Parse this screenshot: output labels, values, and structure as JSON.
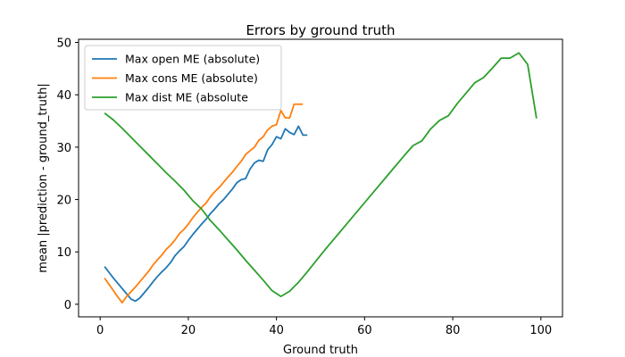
{
  "chart_data": {
    "type": "line",
    "title": "Errors by ground truth",
    "xlabel": "Ground truth",
    "ylabel": "mean |prediction - ground_truth|",
    "xlim": [
      -4.9,
      104.9
    ],
    "ylim": [
      -2.4,
      50.6
    ],
    "xticks": [
      0,
      20,
      40,
      60,
      80,
      100
    ],
    "yticks": [
      0,
      10,
      20,
      30,
      40,
      50
    ],
    "grid": false,
    "legend": "upper left",
    "series": [
      {
        "name": "Max open ME (absolute)",
        "color": "#1f77b4",
        "x": [
          1,
          2,
          3,
          4,
          5,
          6,
          7,
          8,
          9,
          10,
          11,
          12,
          13,
          14,
          15,
          16,
          17,
          18,
          19,
          20,
          21,
          22,
          23,
          24,
          25,
          26,
          27,
          28,
          29,
          30,
          31,
          32,
          33,
          34,
          35,
          36,
          37,
          38,
          39,
          40,
          41,
          42,
          43,
          44,
          45,
          46,
          47
        ],
        "y": [
          7.2,
          6.1,
          5.0,
          4.0,
          3.0,
          2.0,
          1.0,
          0.6,
          1.2,
          2.2,
          3.2,
          4.3,
          5.3,
          6.2,
          7.0,
          8.0,
          9.3,
          10.2,
          11.0,
          12.2,
          13.3,
          14.3,
          15.3,
          16.2,
          17.3,
          18.2,
          19.2,
          20.0,
          21.0,
          22.0,
          23.2,
          23.8,
          24.0,
          25.8,
          27.0,
          27.5,
          27.3,
          29.5,
          30.5,
          32.0,
          31.6,
          33.5,
          32.8,
          32.4,
          34.0,
          32.3,
          32.3
        ]
      },
      {
        "name": "Max cons ME (absolute)",
        "color": "#ff7f0e",
        "x": [
          1,
          2,
          3,
          4,
          5,
          6,
          7,
          8,
          9,
          10,
          11,
          12,
          13,
          14,
          15,
          16,
          17,
          18,
          19,
          20,
          21,
          22,
          23,
          24,
          25,
          26,
          27,
          28,
          29,
          30,
          31,
          32,
          33,
          34,
          35,
          36,
          37,
          38,
          39,
          40,
          41,
          42,
          43,
          44,
          45,
          46
        ],
        "y": [
          5.0,
          3.8,
          2.6,
          1.4,
          0.3,
          1.5,
          2.4,
          3.3,
          4.3,
          5.3,
          6.3,
          7.5,
          8.5,
          9.4,
          10.5,
          11.3,
          12.3,
          13.5,
          14.3,
          15.3,
          16.5,
          17.5,
          18.5,
          19.3,
          20.5,
          21.5,
          22.3,
          23.3,
          24.3,
          25.2,
          26.3,
          27.3,
          28.6,
          29.3,
          30.0,
          31.3,
          32.0,
          33.3,
          34.0,
          34.3,
          37.0,
          35.6,
          35.6,
          38.2,
          38.2,
          38.2
        ]
      },
      {
        "name": "Max dist ME (absolute",
        "color": "#2ca02c",
        "x": [
          1,
          3,
          5,
          7,
          9,
          11,
          13,
          15,
          17,
          19,
          21,
          23,
          25,
          27,
          29,
          31,
          33,
          35,
          37,
          39,
          41,
          43,
          45,
          47,
          49,
          51,
          53,
          55,
          57,
          59,
          61,
          63,
          65,
          67,
          69,
          71,
          73,
          75,
          77,
          79,
          81,
          83,
          85,
          87,
          89,
          91,
          93,
          95,
          97,
          99
        ],
        "y": [
          36.5,
          35.2,
          33.6,
          31.9,
          30.2,
          28.5,
          26.8,
          25.1,
          23.5,
          21.8,
          19.8,
          18.2,
          16.0,
          14.2,
          12.3,
          10.4,
          8.4,
          6.5,
          4.6,
          2.6,
          1.5,
          2.5,
          4.2,
          6.2,
          8.3,
          10.4,
          12.4,
          14.4,
          16.4,
          18.4,
          20.4,
          22.4,
          24.4,
          26.4,
          28.4,
          30.3,
          31.2,
          33.5,
          35.1,
          36.0,
          38.3,
          40.3,
          42.3,
          43.3,
          45.1,
          47.0,
          47.0,
          48.0,
          45.8,
          35.5
        ]
      }
    ]
  }
}
